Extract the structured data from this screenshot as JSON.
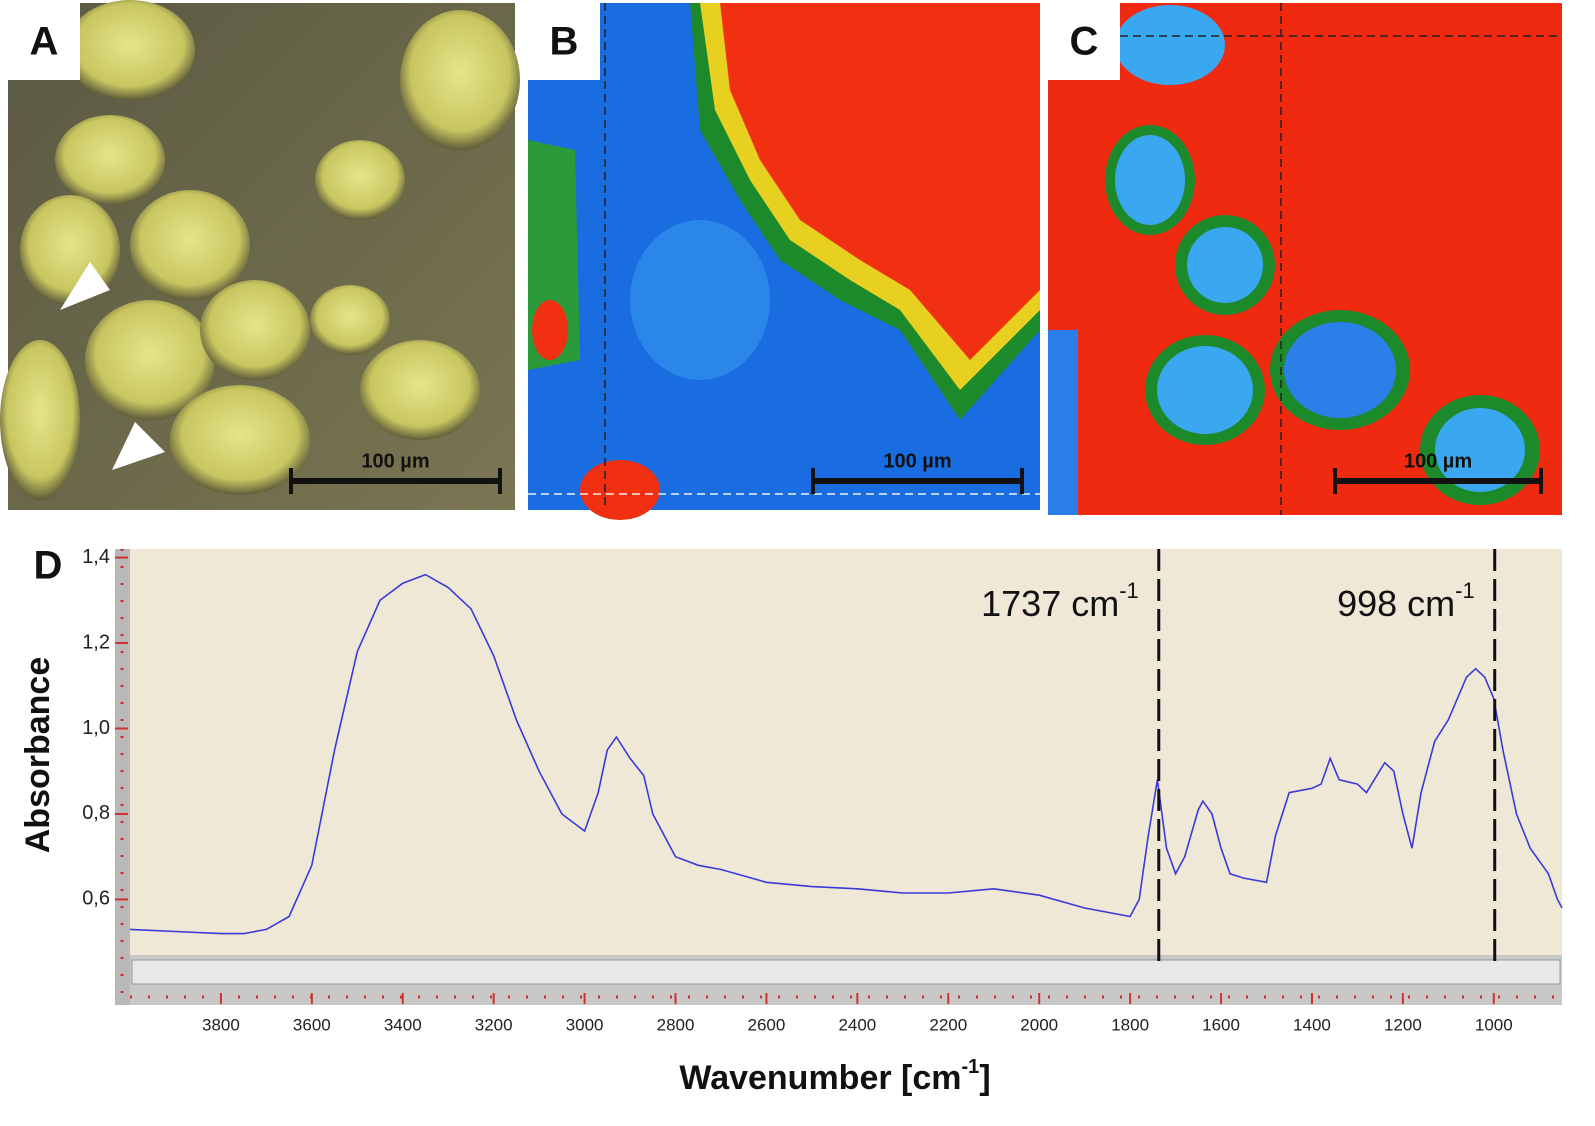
{
  "panels": [
    {
      "label": "A",
      "scale": "100 µm"
    },
    {
      "label": "B",
      "scale": "100 µm"
    },
    {
      "label": "C",
      "scale": "100 µm"
    }
  ],
  "chart_data": {
    "type": "line",
    "panel_label": "D",
    "y_label": "Absorbance",
    "x_label": {
      "text": "Wavenumber [cm",
      "sup": "-1",
      "end": "]"
    },
    "xlim": [
      4000,
      850
    ],
    "ylim": [
      0.47,
      1.42
    ],
    "xticks": [
      3800,
      3600,
      3400,
      3200,
      3000,
      2800,
      2600,
      2400,
      2200,
      2000,
      1800,
      1600,
      1400,
      1200,
      1000
    ],
    "yticks": [
      {
        "value": 0.6,
        "label": "0,6"
      },
      {
        "value": 0.8,
        "label": "0,8"
      },
      {
        "value": 1.0,
        "label": "1,0"
      },
      {
        "value": 1.2,
        "label": "1,2"
      },
      {
        "value": 1.4,
        "label": "1,4"
      }
    ],
    "annotations": [
      {
        "x": 1737,
        "text": "1737 cm",
        "sup": "-1"
      },
      {
        "x": 998,
        "text": "998 cm",
        "sup": "-1"
      }
    ],
    "series": [
      {
        "color": "#3a3ad8",
        "x": [
          4000,
          3900,
          3800,
          3750,
          3700,
          3650,
          3600,
          3550,
          3500,
          3450,
          3400,
          3350,
          3300,
          3250,
          3200,
          3150,
          3100,
          3050,
          3000,
          2970,
          2950,
          2930,
          2900,
          2870,
          2850,
          2800,
          2750,
          2700,
          2600,
          2500,
          2400,
          2300,
          2200,
          2100,
          2000,
          1900,
          1800,
          1780,
          1760,
          1740,
          1720,
          1700,
          1680,
          1650,
          1640,
          1620,
          1600,
          1580,
          1550,
          1500,
          1480,
          1450,
          1400,
          1380,
          1360,
          1340,
          1300,
          1280,
          1240,
          1220,
          1200,
          1180,
          1160,
          1130,
          1100,
          1060,
          1040,
          1020,
          1000,
          980,
          950,
          920,
          880,
          860,
          850
        ],
        "values": [
          0.53,
          0.525,
          0.52,
          0.52,
          0.53,
          0.56,
          0.68,
          0.95,
          1.18,
          1.3,
          1.34,
          1.36,
          1.33,
          1.28,
          1.17,
          1.02,
          0.9,
          0.8,
          0.76,
          0.85,
          0.95,
          0.98,
          0.93,
          0.89,
          0.8,
          0.7,
          0.68,
          0.67,
          0.64,
          0.63,
          0.625,
          0.615,
          0.615,
          0.625,
          0.61,
          0.58,
          0.56,
          0.6,
          0.75,
          0.88,
          0.72,
          0.66,
          0.7,
          0.81,
          0.83,
          0.8,
          0.72,
          0.66,
          0.65,
          0.64,
          0.75,
          0.85,
          0.86,
          0.87,
          0.93,
          0.88,
          0.87,
          0.85,
          0.92,
          0.9,
          0.8,
          0.72,
          0.85,
          0.97,
          1.02,
          1.12,
          1.14,
          1.12,
          1.07,
          0.95,
          0.8,
          0.72,
          0.66,
          0.6,
          0.58
        ]
      }
    ]
  }
}
